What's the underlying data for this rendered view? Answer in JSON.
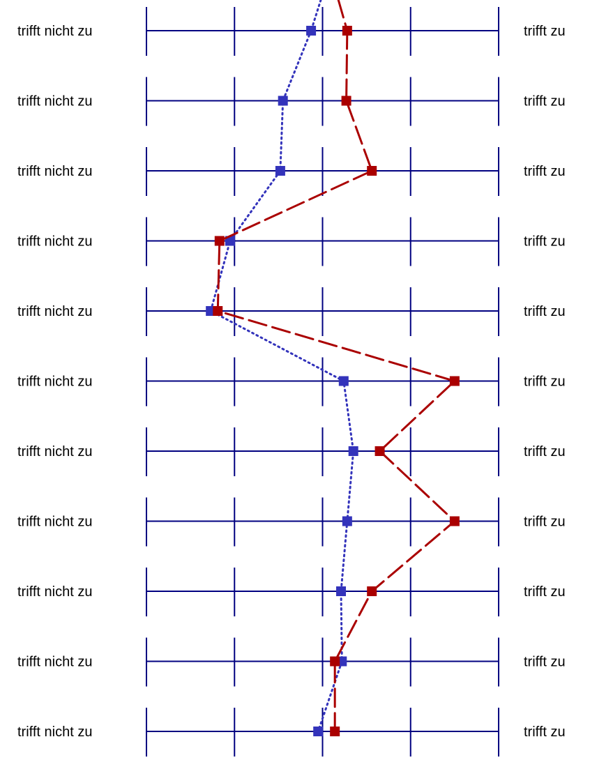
{
  "chart_data": {
    "type": "line",
    "title": "",
    "xlabel": "",
    "ylabel": "",
    "scale_min": 1,
    "scale_max": 5,
    "grid": true,
    "legend": "none",
    "rows": [
      {
        "left": "trifft nicht zu",
        "right": "trifft zu"
      },
      {
        "left": "trifft nicht zu",
        "right": "trifft zu"
      },
      {
        "left": "trifft nicht zu",
        "right": "trifft zu"
      },
      {
        "left": "trifft nicht zu",
        "right": "trifft zu"
      },
      {
        "left": "trifft nicht zu",
        "right": "trifft zu"
      },
      {
        "left": "trifft nicht zu",
        "right": "trifft zu"
      },
      {
        "left": "trifft nicht zu",
        "right": "trifft zu"
      },
      {
        "left": "trifft nicht zu",
        "right": "trifft zu"
      },
      {
        "left": "trifft nicht zu",
        "right": "trifft zu"
      },
      {
        "left": "trifft nicht zu",
        "right": "trifft zu"
      },
      {
        "left": "trifft nicht zu",
        "right": "trifft zu"
      }
    ],
    "series": [
      {
        "color": "#3333bb",
        "style": "dotted",
        "values": [
          2.87,
          2.55,
          2.52,
          1.95,
          1.73,
          3.24,
          3.35,
          3.28,
          3.21,
          3.22,
          2.95
        ],
        "lead_in": 2.98
      },
      {
        "color": "#aa0000",
        "style": "dashed",
        "values": [
          3.28,
          3.27,
          3.56,
          1.83,
          1.81,
          4.5,
          3.65,
          4.5,
          3.56,
          3.14,
          3.14
        ],
        "lead_in": 3.18
      }
    ]
  },
  "colors": {
    "grid": "#000080",
    "text": "#000000"
  }
}
